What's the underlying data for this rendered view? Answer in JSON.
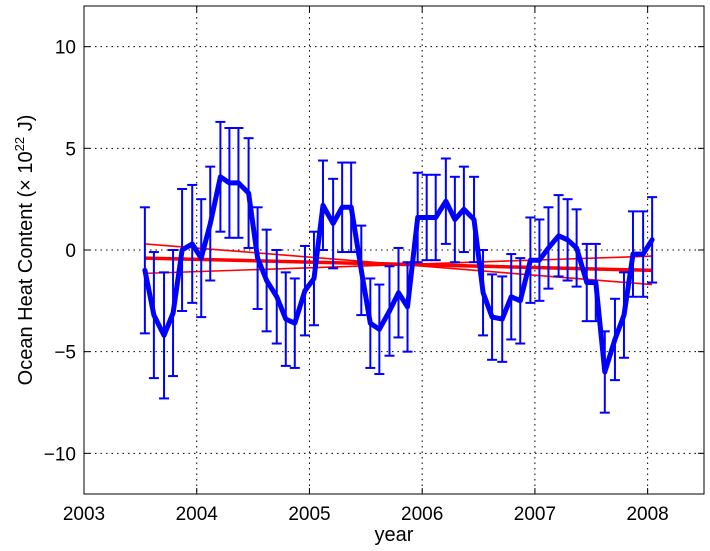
{
  "chart_data": {
    "type": "line",
    "title": "",
    "xlabel": "year",
    "ylabel_main": "Ocean Heat Content (",
    "ylabel_times": "× 10",
    "ylabel_exp": "22",
    "ylabel_unit": " J)",
    "xlim": [
      2003,
      2008.5
    ],
    "ylim": [
      -12,
      12
    ],
    "x_ticks": [
      2003,
      2004,
      2005,
      2006,
      2007,
      2008
    ],
    "y_ticks": [
      -10,
      -5,
      0,
      5,
      10
    ],
    "grid": true,
    "legend": "none",
    "colors": {
      "series": "#0000ff",
      "trend": "#ff0000",
      "grid": "#000000",
      "axes": "#000000"
    },
    "series": [
      {
        "x": [
          2003.54,
          2003.62,
          2003.71,
          2003.79,
          2003.87,
          2003.96,
          2004.04,
          2004.12,
          2004.21,
          2004.29,
          2004.37,
          2004.46,
          2004.54,
          2004.62,
          2004.71,
          2004.79,
          2004.87,
          2004.96,
          2005.04,
          2005.12,
          2005.21,
          2005.29,
          2005.37,
          2005.46,
          2005.54,
          2005.62,
          2005.71,
          2005.79,
          2005.87,
          2005.96,
          2006.04,
          2006.12,
          2006.21,
          2006.29,
          2006.37,
          2006.46,
          2006.54,
          2006.62,
          2006.71,
          2006.79,
          2006.87,
          2006.96,
          2007.04,
          2007.12,
          2007.21,
          2007.29,
          2007.37,
          2007.46,
          2007.54,
          2007.62,
          2007.71,
          2007.79,
          2007.87,
          2007.96,
          2008.04
        ],
        "values": [
          -1.0,
          -3.2,
          -4.2,
          -3.1,
          0.0,
          0.3,
          -0.4,
          1.3,
          3.6,
          3.3,
          3.3,
          2.8,
          -0.4,
          -1.5,
          -2.3,
          -3.4,
          -3.6,
          -2.0,
          -1.4,
          2.2,
          1.3,
          2.1,
          2.1,
          -1.0,
          -3.6,
          -3.9,
          -3.0,
          -2.1,
          -2.8,
          1.6,
          1.6,
          1.6,
          2.4,
          1.5,
          2.0,
          1.5,
          -2.1,
          -3.3,
          -3.4,
          -2.3,
          -2.5,
          -0.5,
          -0.5,
          0.1,
          0.7,
          0.5,
          0.1,
          -1.6,
          -1.6,
          -6.0,
          -4.4,
          -3.2,
          -0.2,
          -0.2,
          0.5
        ],
        "error": [
          3.1,
          3.1,
          3.1,
          3.1,
          3.0,
          2.9,
          2.9,
          2.8,
          2.7,
          2.7,
          2.7,
          2.7,
          2.5,
          2.5,
          2.3,
          2.3,
          2.2,
          2.2,
          2.3,
          2.2,
          2.2,
          2.2,
          2.2,
          2.2,
          2.2,
          2.2,
          2.2,
          2.2,
          2.2,
          2.2,
          2.1,
          2.1,
          2.1,
          2.1,
          2.1,
          2.1,
          2.1,
          2.1,
          2.1,
          2.1,
          2.1,
          2.1,
          2.0,
          2.0,
          2.0,
          2.0,
          1.9,
          1.9,
          1.9,
          2.0,
          2.0,
          2.1,
          2.1,
          2.1,
          2.1
        ]
      }
    ],
    "trend_lines": [
      {
        "x": [
          2003.54,
          2008.04
        ],
        "values": [
          -0.4,
          -1.0
        ]
      },
      {
        "x": [
          2003.54,
          2008.04
        ],
        "values": [
          0.3,
          -1.7
        ]
      },
      {
        "x": [
          2003.54,
          2008.04
        ],
        "values": [
          -1.15,
          -0.3
        ]
      }
    ]
  }
}
